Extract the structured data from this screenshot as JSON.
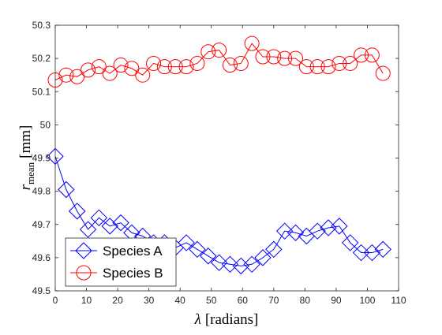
{
  "chart_data": {
    "type": "line",
    "title": "",
    "xlabel": {
      "symbol": "λ",
      "text": "[radians]"
    },
    "ylabel": {
      "symbol": "r",
      "subscript": "mean",
      "text": "[mm]"
    },
    "xlim": [
      0,
      110
    ],
    "ylim": [
      49.5,
      50.3
    ],
    "x_ticks": [
      0,
      10,
      20,
      30,
      40,
      50,
      60,
      70,
      80,
      90,
      100,
      110
    ],
    "y_ticks": [
      "49.5",
      "49.6",
      "49.7",
      "49.8",
      "49.9",
      "50",
      "50.1",
      "50.2",
      "50.3"
    ],
    "grid": false,
    "legend_position": "bottom-left",
    "series": [
      {
        "name": "Species A",
        "color": "#0000ff",
        "marker": "diamond",
        "x": [
          0,
          3.5,
          7,
          10.5,
          14,
          17.5,
          21,
          24.5,
          28,
          31.5,
          35,
          38.5,
          42,
          45.5,
          49,
          52.5,
          56,
          59.5,
          63,
          66.5,
          70,
          73.5,
          77,
          80.5,
          84,
          87.5,
          91,
          94.5,
          98,
          101.5,
          105
        ],
        "y": [
          49.905,
          49.805,
          49.74,
          49.685,
          49.72,
          49.695,
          49.705,
          49.675,
          49.665,
          49.645,
          49.645,
          49.63,
          49.645,
          49.625,
          49.605,
          49.585,
          49.58,
          49.575,
          49.58,
          49.6,
          49.625,
          49.68,
          49.675,
          49.665,
          49.68,
          49.69,
          49.695,
          49.645,
          49.615,
          49.615,
          49.625
        ]
      },
      {
        "name": "Species B",
        "color": "#ff0000",
        "marker": "circle",
        "x": [
          0,
          3.5,
          7,
          10.5,
          14,
          17.5,
          21,
          24.5,
          28,
          31.5,
          35,
          38.5,
          42,
          45.5,
          49,
          52.5,
          56,
          59.5,
          63,
          66.5,
          70,
          73.5,
          77,
          80.5,
          84,
          87.5,
          91,
          94.5,
          98,
          101.5,
          105
        ],
        "y": [
          50.135,
          50.15,
          50.145,
          50.165,
          50.175,
          50.155,
          50.18,
          50.17,
          50.15,
          50.185,
          50.175,
          50.175,
          50.175,
          50.185,
          50.22,
          50.225,
          50.18,
          50.185,
          50.245,
          50.205,
          50.205,
          50.2,
          50.2,
          50.175,
          50.175,
          50.175,
          50.185,
          50.185,
          50.21,
          50.21,
          50.155
        ]
      }
    ]
  }
}
